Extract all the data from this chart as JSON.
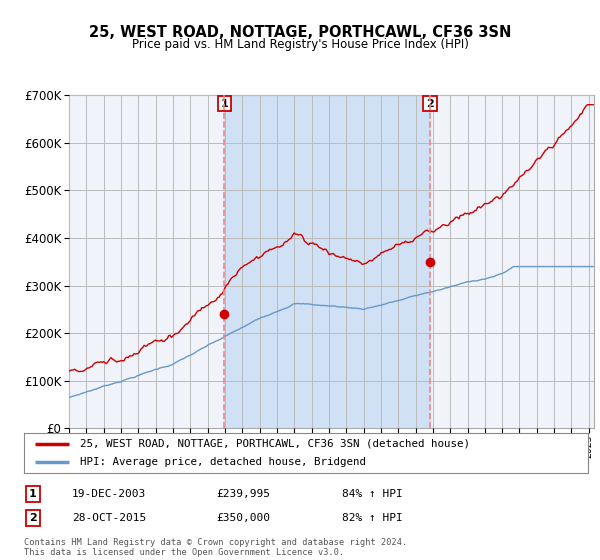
{
  "title": "25, WEST ROAD, NOTTAGE, PORTHCAWL, CF36 3SN",
  "subtitle": "Price paid vs. HM Land Registry's House Price Index (HPI)",
  "legend_entry1": "25, WEST ROAD, NOTTAGE, PORTHCAWL, CF36 3SN (detached house)",
  "legend_entry2": "HPI: Average price, detached house, Bridgend",
  "annotation1_label": "1",
  "annotation1_date": "19-DEC-2003",
  "annotation1_price": "£239,995",
  "annotation1_hpi": "84% ↑ HPI",
  "annotation2_label": "2",
  "annotation2_date": "28-OCT-2015",
  "annotation2_price": "£350,000",
  "annotation2_hpi": "82% ↑ HPI",
  "footer": "Contains HM Land Registry data © Crown copyright and database right 2024.\nThis data is licensed under the Open Government Licence v3.0.",
  "ylim": [
    0,
    700000
  ],
  "yticks": [
    0,
    100000,
    200000,
    300000,
    400000,
    500000,
    600000,
    700000
  ],
  "xlim_start": 1995,
  "xlim_end": 2025.3,
  "background_color": "#ffffff",
  "plot_bg_color": "#f0f4fa",
  "grid_color": "#bbbbbb",
  "hpi_line_color": "#6699cc",
  "price_line_color": "#cc0000",
  "vline_color": "#ee8888",
  "shade_color": "#d0e0f5",
  "dot_color": "#cc0000",
  "sale1_x": 2003.97,
  "sale1_y": 239995,
  "sale2_x": 2015.83,
  "sale2_y": 350000
}
